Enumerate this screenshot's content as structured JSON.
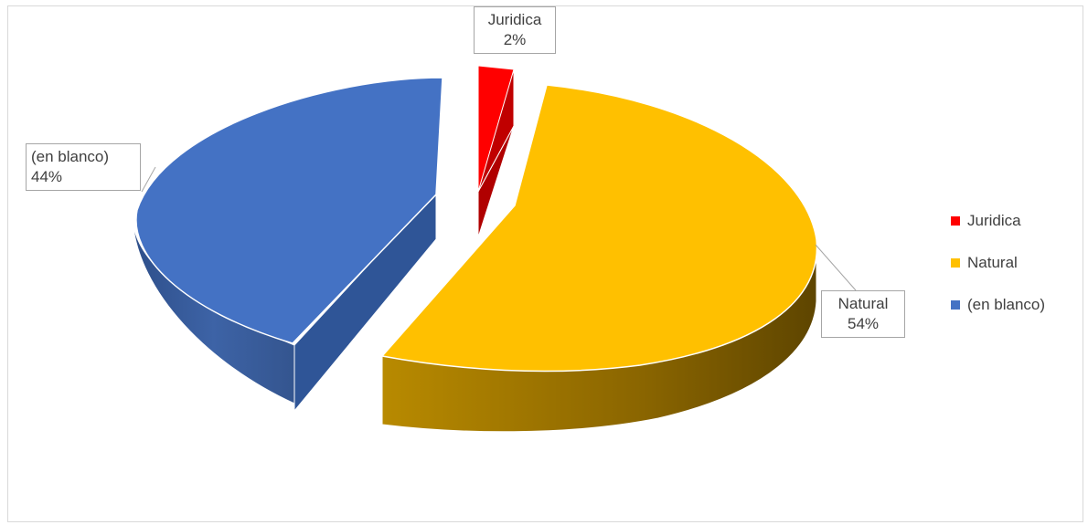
{
  "chart_data": {
    "type": "pie",
    "style": "3d-exploded",
    "slices": [
      {
        "label": "Juridica",
        "value": 2,
        "value_label": "2%",
        "color": "#ff0000"
      },
      {
        "label": "Natural",
        "value": 54,
        "value_label": "54%",
        "color": "#ffc000"
      },
      {
        "label": "(en blanco)",
        "value": 44,
        "value_label": "44%",
        "color": "#4472c4"
      }
    ],
    "legend": {
      "position": "right",
      "entries": [
        "Juridica",
        "Natural",
        "(en blanco)"
      ]
    }
  }
}
